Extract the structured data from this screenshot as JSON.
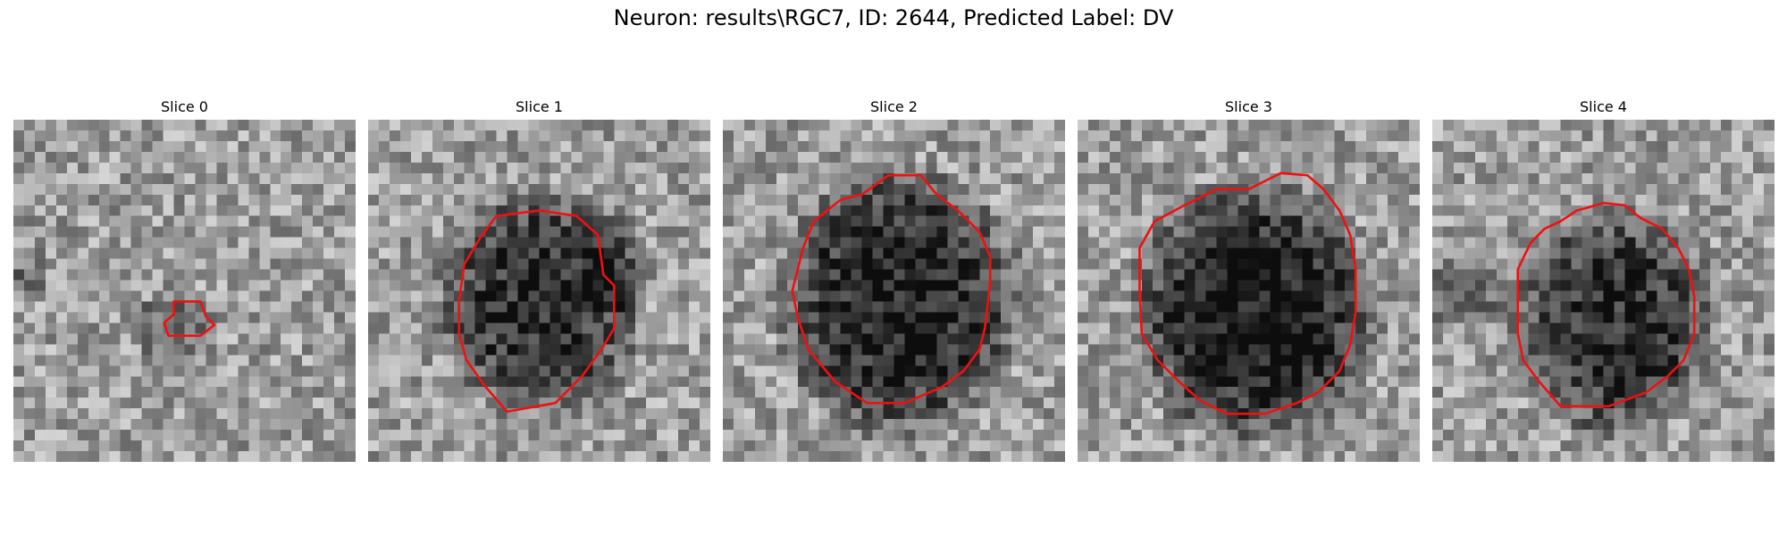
{
  "figure": {
    "title": "Neuron: results\\RGC7, ID: 2644, Predicted Label: DV"
  },
  "slices": [
    {
      "title": "Slice 0"
    },
    {
      "title": "Slice 1"
    },
    {
      "title": "Slice 2"
    },
    {
      "title": "Slice 3"
    },
    {
      "title": "Slice 4"
    }
  ],
  "colors": {
    "contour": "#ee1111",
    "background": "#ffffff"
  }
}
